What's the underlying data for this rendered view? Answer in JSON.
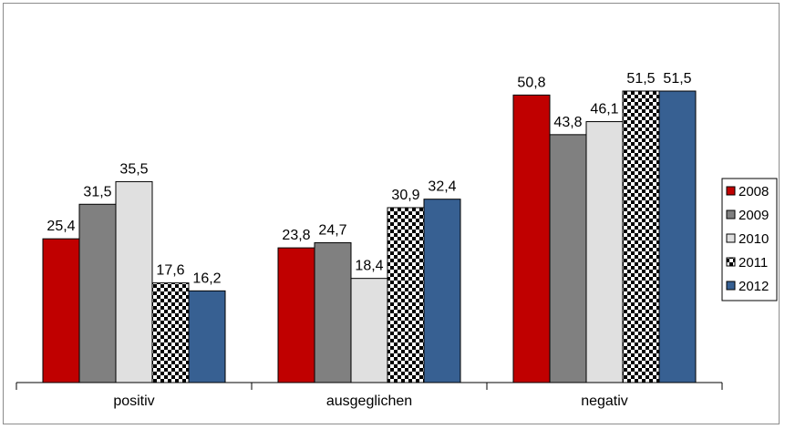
{
  "chart_data": {
    "type": "bar",
    "title": "",
    "xlabel": "",
    "ylabel": "",
    "ylim": [
      0,
      60
    ],
    "grid": false,
    "legend_position": "right",
    "categories": [
      "positiv",
      "ausgeglichen",
      "negativ"
    ],
    "series": [
      {
        "name": "2008",
        "color": "#C00000",
        "pattern": "solid",
        "values": [
          25.4,
          23.8,
          50.8
        ],
        "labels": [
          "25,4",
          "23,8",
          "50,8"
        ]
      },
      {
        "name": "2009",
        "color": "#808080",
        "pattern": "solid",
        "values": [
          31.5,
          24.7,
          43.8
        ],
        "labels": [
          "31,5",
          "24,7",
          "43,8"
        ]
      },
      {
        "name": "2010",
        "color": "#E0E0E0",
        "pattern": "solid",
        "values": [
          35.5,
          18.4,
          46.1
        ],
        "labels": [
          "35,5",
          "18,4",
          "46,1"
        ]
      },
      {
        "name": "2011",
        "color": "#000000",
        "pattern": "checker",
        "values": [
          17.6,
          30.9,
          51.5
        ],
        "labels": [
          "17,6",
          "30,9",
          "51,5"
        ]
      },
      {
        "name": "2012",
        "color": "#376092",
        "pattern": "solid",
        "values": [
          16.2,
          32.4,
          51.5
        ],
        "labels": [
          "16,2",
          "32,4",
          "51,5"
        ]
      }
    ]
  }
}
